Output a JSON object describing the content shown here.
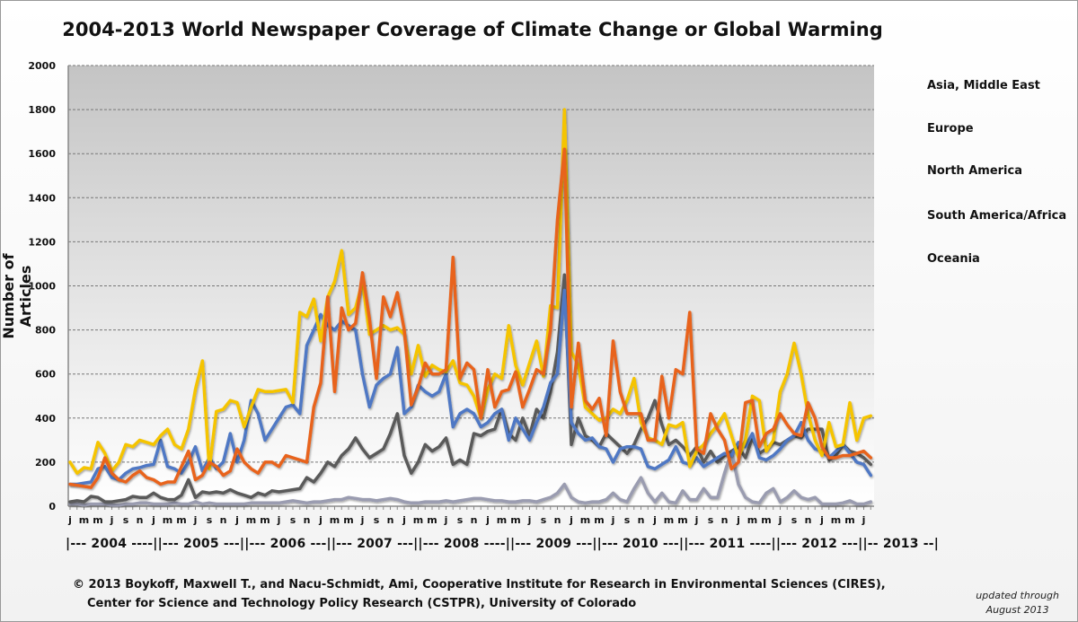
{
  "chart_data": {
    "type": "line",
    "title": "2004-2013 World Newspaper Coverage of Climate Change or Global Warming",
    "xlabel": "",
    "ylabel": "Number of Articles",
    "ylim": [
      0,
      2000
    ],
    "y_ticks": [
      0,
      200,
      400,
      600,
      800,
      1000,
      1200,
      1400,
      1600,
      1800,
      2000
    ],
    "grid": true,
    "legend_position": "right",
    "x_start": "2004-01",
    "x_end": "2013-08",
    "x_tick_labels": [
      "j",
      "m",
      "m",
      "j",
      "s",
      "n",
      "j",
      "m",
      "m",
      "j",
      "s",
      "n",
      "j",
      "m",
      "m",
      "j",
      "s",
      "n",
      "j",
      "m",
      "m",
      "j",
      "s",
      "n",
      "j",
      "m",
      "m",
      "j",
      "s",
      "n",
      "j",
      "m",
      "m",
      "j",
      "s",
      "n",
      "j",
      "m",
      "m",
      "j",
      "s",
      "n",
      "j",
      "m",
      "m",
      "j",
      "s",
      "n",
      "j",
      "m",
      "m",
      "j",
      "s",
      "n",
      "j",
      "m",
      "m",
      "j"
    ],
    "year_axis_label": "|--- 2004 ----||--- 2005 ---||--- 2006 ---||--- 2007 ---||--- 2008 ----||--- 2009 ---||--- 2010 ---||--- 2011 ----||--- 2012 ---||-- 2013 --|",
    "series": [
      {
        "name": "South America/Africa",
        "color": "#9a9cb0",
        "values": [
          10,
          10,
          5,
          10,
          10,
          10,
          5,
          5,
          10,
          10,
          15,
          15,
          10,
          10,
          10,
          15,
          10,
          10,
          20,
          10,
          15,
          10,
          10,
          10,
          10,
          10,
          15,
          15,
          15,
          15,
          15,
          20,
          25,
          20,
          15,
          20,
          20,
          25,
          30,
          30,
          40,
          35,
          30,
          30,
          25,
          30,
          35,
          30,
          20,
          15,
          15,
          20,
          20,
          20,
          25,
          20,
          25,
          30,
          35,
          35,
          30,
          25,
          25,
          20,
          20,
          25,
          25,
          20,
          30,
          40,
          60,
          100,
          40,
          20,
          15,
          20,
          20,
          30,
          60,
          30,
          20,
          80,
          130,
          60,
          20,
          60,
          20,
          15,
          70,
          30,
          30,
          80,
          40,
          40,
          150,
          250,
          100,
          40,
          20,
          15,
          60,
          80,
          20,
          40,
          70,
          40,
          30,
          40,
          10,
          10,
          10,
          15,
          25,
          10,
          10,
          20
        ]
      },
      {
        "name": "Asia, Middle East",
        "color": "#5a5a5a",
        "values": [
          20,
          25,
          20,
          45,
          40,
          20,
          20,
          25,
          30,
          45,
          40,
          40,
          60,
          40,
          30,
          30,
          50,
          120,
          40,
          65,
          60,
          65,
          60,
          75,
          60,
          50,
          40,
          60,
          50,
          70,
          65,
          70,
          75,
          80,
          130,
          110,
          150,
          200,
          180,
          230,
          260,
          310,
          260,
          220,
          240,
          260,
          330,
          420,
          230,
          150,
          200,
          280,
          250,
          270,
          310,
          190,
          210,
          190,
          330,
          320,
          340,
          350,
          440,
          330,
          300,
          400,
          320,
          440,
          400,
          520,
          700,
          1050,
          280,
          400,
          320,
          300,
          270,
          330,
          300,
          270,
          240,
          280,
          350,
          400,
          480,
          370,
          280,
          300,
          270,
          230,
          270,
          200,
          250,
          200,
          230,
          250,
          270,
          220,
          310,
          240,
          260,
          290,
          280,
          300,
          320,
          310,
          350,
          350,
          350,
          210,
          230,
          280,
          250,
          240,
          220,
          190
        ]
      },
      {
        "name": "North America",
        "color": "#4f78c4",
        "values": [
          100,
          100,
          105,
          110,
          170,
          180,
          130,
          120,
          150,
          170,
          175,
          185,
          190,
          300,
          180,
          170,
          150,
          200,
          270,
          160,
          220,
          170,
          200,
          330,
          200,
          300,
          480,
          420,
          300,
          350,
          400,
          450,
          460,
          420,
          730,
          800,
          870,
          820,
          800,
          840,
          820,
          800,
          600,
          450,
          550,
          580,
          600,
          720,
          420,
          450,
          550,
          520,
          500,
          520,
          600,
          360,
          420,
          440,
          420,
          360,
          380,
          420,
          440,
          300,
          400,
          350,
          300,
          380,
          450,
          560,
          600,
          980,
          380,
          330,
          300,
          310,
          270,
          260,
          200,
          260,
          270,
          270,
          260,
          180,
          170,
          190,
          210,
          270,
          200,
          190,
          220,
          180,
          200,
          220,
          240,
          230,
          290,
          270,
          330,
          220,
          210,
          230,
          260,
          300,
          320,
          380,
          300,
          260,
          250,
          220,
          250,
          280,
          240,
          200,
          190,
          140
        ]
      },
      {
        "name": "Europe",
        "color": "#f5c400",
        "values": [
          200,
          150,
          175,
          170,
          290,
          240,
          160,
          200,
          280,
          270,
          300,
          290,
          280,
          320,
          350,
          280,
          260,
          350,
          530,
          660,
          170,
          430,
          440,
          480,
          470,
          360,
          450,
          530,
          520,
          520,
          525,
          530,
          470,
          880,
          860,
          940,
          750,
          950,
          1020,
          1160,
          870,
          900,
          1020,
          780,
          800,
          820,
          800,
          810,
          780,
          600,
          730,
          590,
          640,
          620,
          610,
          660,
          560,
          550,
          500,
          400,
          530,
          600,
          580,
          820,
          640,
          550,
          650,
          750,
          590,
          910,
          900,
          1800,
          700,
          640,
          450,
          420,
          390,
          400,
          440,
          420,
          480,
          580,
          380,
          310,
          300,
          280,
          370,
          360,
          380,
          180,
          250,
          280,
          330,
          370,
          420,
          320,
          220,
          300,
          500,
          480,
          250,
          300,
          520,
          600,
          740,
          600,
          420,
          300,
          230,
          380,
          270,
          280,
          470,
          300,
          400,
          410
        ]
      },
      {
        "name": "Oceania",
        "color": "#e8641e",
        "values": [
          100,
          95,
          90,
          85,
          130,
          220,
          150,
          120,
          110,
          140,
          160,
          130,
          120,
          100,
          110,
          110,
          180,
          250,
          120,
          140,
          200,
          180,
          140,
          160,
          260,
          200,
          170,
          150,
          200,
          200,
          180,
          230,
          220,
          210,
          200,
          450,
          560,
          950,
          520,
          900,
          800,
          830,
          1060,
          850,
          580,
          950,
          860,
          970,
          800,
          460,
          540,
          650,
          600,
          600,
          620,
          1130,
          580,
          650,
          620,
          400,
          620,
          450,
          520,
          530,
          610,
          450,
          530,
          620,
          600,
          800,
          1300,
          1620,
          450,
          740,
          480,
          440,
          490,
          320,
          750,
          520,
          420,
          420,
          420,
          300,
          300,
          590,
          400,
          620,
          600,
          880,
          260,
          240,
          420,
          350,
          300,
          170,
          200,
          470,
          480,
          270,
          330,
          350,
          420,
          370,
          330,
          320,
          470,
          400,
          270,
          220,
          220,
          230,
          230,
          240,
          250,
          220
        ]
      }
    ],
    "legend_order": [
      "Asia, Middle East",
      "Europe",
      "North America",
      "South America/Africa",
      "Oceania"
    ]
  },
  "footer": {
    "credit_line1": "© 2013 Boykoff, Maxwell T., and Nacu-Schmidt, Ami, Cooperative Institute for Research in Environmental Sciences (CIRES),",
    "credit_line2": "Center for Science and Technology Policy Research (CSTPR), University of Colorado",
    "updated_line1": "updated through",
    "updated_line2": "August 2013"
  }
}
